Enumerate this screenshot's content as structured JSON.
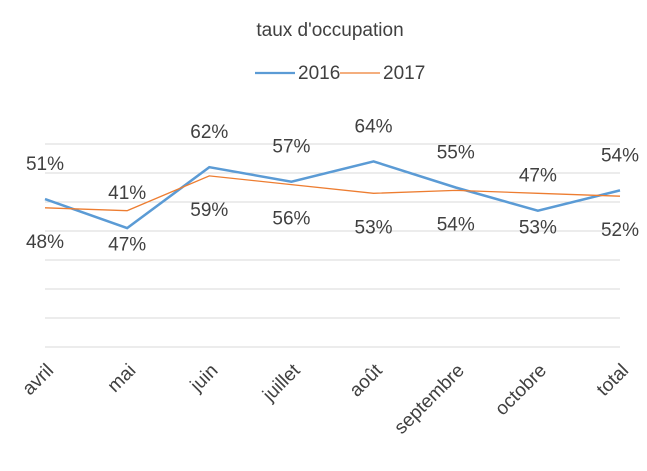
{
  "chart_data": {
    "type": "line",
    "title": "taux d'occupation",
    "categories": [
      "avril",
      "mai",
      "juin",
      "juillet",
      "août",
      "septembre",
      "octobre",
      "total"
    ],
    "series": [
      {
        "name": "2016",
        "color": "#5b9bd5",
        "values": [
          51,
          41,
          62,
          57,
          64,
          55,
          47,
          54
        ],
        "value_labels": [
          "51%",
          "41%",
          "62%",
          "57%",
          "64%",
          "55%",
          "47%",
          "54%"
        ]
      },
      {
        "name": "2017",
        "color": "#ed7d31",
        "values": [
          48,
          47,
          59,
          56,
          53,
          54,
          53,
          52
        ],
        "value_labels": [
          "48%",
          "47%",
          "59%",
          "56%",
          "53%",
          "54%",
          "53%",
          "52%"
        ]
      }
    ],
    "ylim": [
      0,
      70
    ],
    "yticks": [
      0,
      10,
      20,
      30,
      40,
      50,
      60,
      70
    ],
    "grid": true
  }
}
